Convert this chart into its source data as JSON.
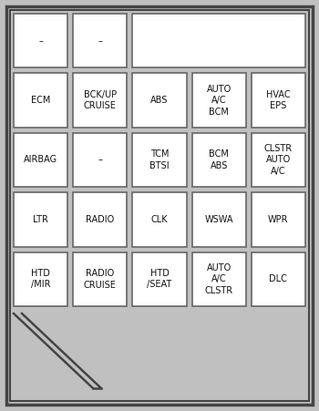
{
  "bg_color": "#c0c0c0",
  "outer_border_color": "#444444",
  "inner_border_color": "#666666",
  "cell_bg": "#ffffff",
  "cell_border": "#666666",
  "text_color": "#111111",
  "font_size": 7.0,
  "rows": [
    [
      {
        "label": "–",
        "cols": [
          0
        ]
      },
      {
        "label": "–",
        "cols": [
          1
        ]
      },
      {
        "label": "",
        "cols": [
          2,
          3,
          4
        ]
      }
    ],
    [
      {
        "label": "ECM",
        "cols": [
          0
        ]
      },
      {
        "label": "BCK/UP\nCRUISE",
        "cols": [
          1
        ]
      },
      {
        "label": "ABS",
        "cols": [
          2
        ]
      },
      {
        "label": "AUTO\nA/C\nBCM",
        "cols": [
          3
        ]
      },
      {
        "label": "HVAC\nEPS",
        "cols": [
          4
        ]
      }
    ],
    [
      {
        "label": "AIRBAG",
        "cols": [
          0
        ]
      },
      {
        "label": "–",
        "cols": [
          1
        ]
      },
      {
        "label": "TCM\nBTSI",
        "cols": [
          2
        ]
      },
      {
        "label": "BCM\nABS",
        "cols": [
          3
        ]
      },
      {
        "label": "CLSTR\nAUTO\nA/C",
        "cols": [
          4
        ]
      }
    ],
    [
      {
        "label": "LTR",
        "cols": [
          0
        ]
      },
      {
        "label": "RADIO",
        "cols": [
          1
        ]
      },
      {
        "label": "CLK",
        "cols": [
          2
        ]
      },
      {
        "label": "WSWA",
        "cols": [
          3
        ]
      },
      {
        "label": "WPR",
        "cols": [
          4
        ]
      }
    ],
    [
      {
        "label": "HTD\n/MIR",
        "cols": [
          0
        ]
      },
      {
        "label": "RADIO\nCRUISE",
        "cols": [
          1
        ]
      },
      {
        "label": "HTD\n/SEAT",
        "cols": [
          2
        ]
      },
      {
        "label": "AUTO\nA/C\nCLSTR",
        "cols": [
          3
        ]
      },
      {
        "label": "DLC",
        "cols": [
          4
        ]
      }
    ]
  ],
  "ncols": 5,
  "nrows": 5,
  "fig_width": 3.5,
  "fig_height": 4.51,
  "dpi": 100
}
